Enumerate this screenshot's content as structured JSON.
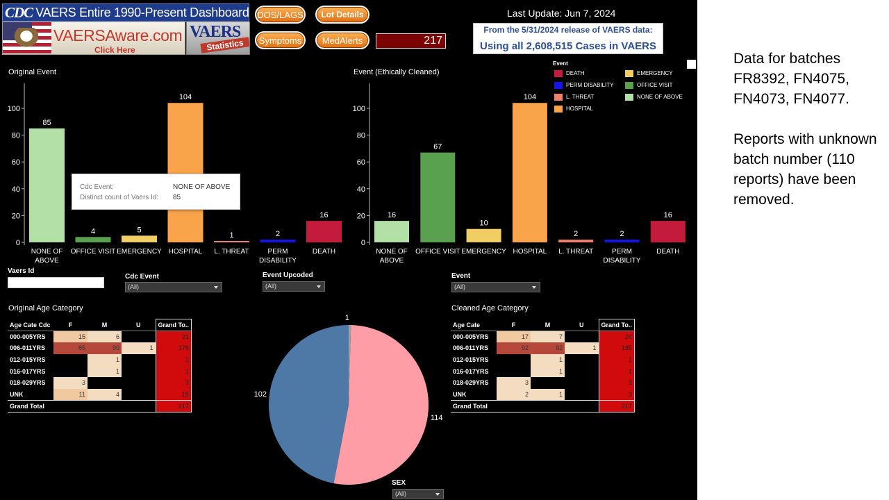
{
  "header": {
    "cdc_mark": "CDC",
    "dashboard_title": "VAERS Entire 1990-Present Dashboard",
    "site_name": "VAERSAware.com",
    "click_here": "Click Here",
    "vaers_logo": "VAERS",
    "statistics_label": "Statistics",
    "buttons": {
      "dos_lags": "DOS/LAGS",
      "lot_details": "Lot Details",
      "symptoms": "Symptoms",
      "medalerts": "MedAlerts"
    },
    "total_count": "217",
    "last_update": "Last Update: Jun 7, 2024",
    "release_line": "From the 5/31/2024 release of VAERS data:",
    "cases_line": "Using all 2,608,515 Cases in VAERS"
  },
  "chart_data": [
    {
      "type": "bar",
      "title": "Original Event",
      "categories": [
        "NONE OF ABOVE",
        "OFFICE VISIT",
        "EMERGENCY",
        "HOSPITAL",
        "L. THREAT",
        "PERM DISABILITY",
        "DEATH"
      ],
      "values": [
        85,
        4,
        5,
        104,
        1,
        2,
        16
      ],
      "colors": [
        "#b3e0a6",
        "#59a14f",
        "#f1ce63",
        "#f9a44a",
        "#f07f6c",
        "#1414e6",
        "#c41a3c"
      ],
      "yticks": [
        0,
        20,
        40,
        60,
        80,
        100
      ],
      "ylim": [
        0,
        115
      ]
    },
    {
      "type": "bar",
      "title": "Event (Ethically Cleaned)",
      "categories": [
        "NONE OF ABOVE",
        "OFFICE VISIT",
        "EMERGENCY",
        "HOSPITAL",
        "L. THREAT",
        "PERM DISABILITY",
        "DEATH"
      ],
      "values": [
        16,
        67,
        10,
        104,
        2,
        2,
        16
      ],
      "colors": [
        "#b3e0a6",
        "#59a14f",
        "#f1ce63",
        "#f9a44a",
        "#f07f6c",
        "#1414e6",
        "#c41a3c"
      ],
      "yticks": [
        0,
        20,
        40,
        60,
        80,
        100
      ],
      "ylim": [
        0,
        115
      ]
    },
    {
      "type": "pie",
      "title": "SEX",
      "slices": [
        {
          "value": 114,
          "label": "114",
          "color": "#ff9da7"
        },
        {
          "value": 102,
          "label": "102",
          "color": "#4e79a7"
        },
        {
          "value": 1,
          "label": "1",
          "color": "#a0a0a0"
        }
      ]
    }
  ],
  "legend": {
    "title": "Event",
    "items": [
      {
        "label": "DEATH",
        "color": "#c41a3c"
      },
      {
        "label": "PERM DISABILITY",
        "color": "#1414e6"
      },
      {
        "label": "L. THREAT",
        "color": "#f07f6c"
      },
      {
        "label": "HOSPITAL",
        "color": "#f9a44a"
      },
      {
        "label": "EMERGENCY",
        "color": "#f1ce63"
      },
      {
        "label": "OFFICE VISIT",
        "color": "#59a14f"
      },
      {
        "label": "NONE OF ABOVE",
        "color": "#b3e0a6"
      }
    ]
  },
  "tooltip": {
    "k1": "Cdc Event:",
    "v1": "NONE OF ABOVE",
    "k2": "Distinct count of Vaers Id:",
    "v2": "85"
  },
  "filters": {
    "vaers_id_label": "Vaers Id",
    "cdc_event_label": "Cdc Event",
    "cdc_event_value": "(All)",
    "event_upcoded_label": "Event Upcoded",
    "event_upcoded_value": "(All)",
    "event_label": "Event",
    "event_value": "(All)",
    "sex_label": "SEX",
    "sex_value": "(All)"
  },
  "tables": [
    {
      "title": "Original Age Category",
      "row_header": "Age Cate Cdc",
      "columns": [
        "F",
        "M",
        "U",
        "Grand To.."
      ],
      "rows": [
        {
          "label": "000-005YRS",
          "cells": [
            "15",
            "6",
            "",
            "21"
          ]
        },
        {
          "label": "006-011YRS",
          "cells": [
            "85",
            "90",
            "1",
            "176"
          ]
        },
        {
          "label": "012-015YRS",
          "cells": [
            "",
            "1",
            "",
            "1"
          ]
        },
        {
          "label": "016-017YRS",
          "cells": [
            "",
            "1",
            "",
            "1"
          ]
        },
        {
          "label": "018-029YRS",
          "cells": [
            "3",
            "",
            "",
            "3"
          ]
        },
        {
          "label": "UNK",
          "cells": [
            "11",
            "4",
            "",
            "15"
          ]
        }
      ],
      "total_label": "Grand Total",
      "total": "217"
    },
    {
      "title": "Cleaned Age Category",
      "row_header": "Age Cate",
      "columns": [
        "F",
        "M",
        "U",
        "Grand To.."
      ],
      "rows": [
        {
          "label": "000-005YRS",
          "cells": [
            "17",
            "7",
            "",
            "24"
          ]
        },
        {
          "label": "006-011YRS",
          "cells": [
            "92",
            "92",
            "1",
            "185"
          ]
        },
        {
          "label": "012-015YRS",
          "cells": [
            "",
            "1",
            "",
            "1"
          ]
        },
        {
          "label": "016-017YRS",
          "cells": [
            "",
            "1",
            "",
            "1"
          ]
        },
        {
          "label": "018-029YRS",
          "cells": [
            "3",
            "",
            "",
            "3"
          ]
        },
        {
          "label": "UNK",
          "cells": [
            "2",
            "1",
            "",
            "3"
          ]
        }
      ],
      "total_label": "Grand Total",
      "total": "217"
    }
  ],
  "side_note": {
    "p1": "Data for batches FR8392, FN4075, FN4073, FN4077.",
    "p2": "Reports with unknown batch number (110 reports) have been removed."
  }
}
